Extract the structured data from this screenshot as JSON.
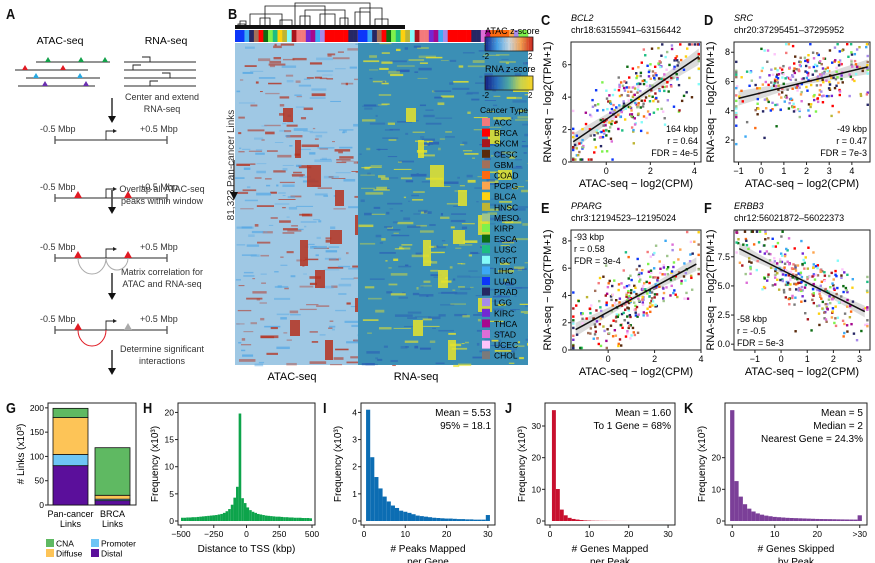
{
  "panels": {
    "A": {
      "label": "A",
      "atac_title": "ATAC-seq",
      "rna_title": "RNA-seq",
      "steps": [
        "Center and extend\nRNA-seq",
        "Overlap all ATAC-seq\npeaks within window",
        "Matrix correlation for\nATAC and RNA-seq",
        "Determine significant\ninteractions"
      ],
      "left_window": "-0.5 Mbp",
      "right_window": "+0.5 Mbp",
      "peak_colors": [
        "#13a14a",
        "#e01b24",
        "#29a8e0",
        "#6a2fb0"
      ]
    },
    "B": {
      "label": "B",
      "ylabel": "81,323 Pan-cancer Links",
      "atac_xlabel": "ATAC-seq",
      "rna_xlabel": "RNA-seq",
      "atac_scale_title": "ATAC z-score",
      "rna_scale_title": "RNA z-score",
      "scale_min": "-2",
      "scale_max": "2",
      "legend_title": "Cancer Type",
      "cancer_types": [
        {
          "name": "ACC",
          "color": "#f4797b"
        },
        {
          "name": "BRCA",
          "color": "#ff0000"
        },
        {
          "name": "SKCM",
          "color": "#a8151d"
        },
        {
          "name": "CESC",
          "color": "#5a2a0c"
        },
        {
          "name": "GBM",
          "color": "#a2705a"
        },
        {
          "name": "COAD",
          "color": "#fd6a11"
        },
        {
          "name": "PCPG",
          "color": "#fda54e"
        },
        {
          "name": "BLCA",
          "color": "#fdd10f"
        },
        {
          "name": "HNSC",
          "color": "#bdb534"
        },
        {
          "name": "MESO",
          "color": "#9fc48c"
        },
        {
          "name": "KIRP",
          "color": "#7ef14c"
        },
        {
          "name": "ESCA",
          "color": "#0d6c13"
        },
        {
          "name": "LUSC",
          "color": "#1dbd82"
        },
        {
          "name": "TGCT",
          "color": "#84fbf9"
        },
        {
          "name": "LIHC",
          "color": "#3ca9f4"
        },
        {
          "name": "LUAD",
          "color": "#0c36f9"
        },
        {
          "name": "PRAD",
          "color": "#262764"
        },
        {
          "name": "LGG",
          "color": "#a68ae9"
        },
        {
          "name": "KIRC",
          "color": "#7328d3"
        },
        {
          "name": "THCA",
          "color": "#a5088e"
        },
        {
          "name": "STAD",
          "color": "#dd6ed7"
        },
        {
          "name": "UCEC",
          "color": "#fdc4fa"
        },
        {
          "name": "CHOL",
          "color": "#7a7a7a"
        }
      ]
    }
  },
  "chart_data": [
    {
      "id": "C",
      "type": "scatter",
      "label": "C",
      "gene": "BCL2",
      "region": "chr18:63155941–63156442",
      "xlabel": "ATAC-seq − log2(CPM)",
      "ylabel": "RNA-seq − log2(TPM+1)",
      "xlim": [
        -1.6,
        4.3
      ],
      "ylim": [
        0,
        7.4
      ],
      "xticks": [
        "0",
        "2",
        "4"
      ],
      "xtick_values": [
        0,
        2,
        4
      ],
      "yticks": [
        "0",
        "2",
        "4",
        "6"
      ],
      "ytick_values": [
        0,
        2,
        4,
        6
      ],
      "fit": {
        "x": [
          -1.5,
          4.2
        ],
        "y": [
          1.25,
          6.5
        ]
      },
      "annotations": [
        "164 kbp",
        "r = 0.64",
        "FDR = 4e-5"
      ],
      "annotation_position": "bottom-right",
      "point_count": 320,
      "seed": 11
    },
    {
      "id": "D",
      "type": "scatter",
      "label": "D",
      "gene": "SRC",
      "region": "chr20:37295451–37295952",
      "xlabel": "ATAC-seq − log2(CPM)",
      "ylabel": "RNA-seq − log2(TPM+1)",
      "xlim": [
        -1.2,
        4.8
      ],
      "ylim": [
        0.5,
        8.7
      ],
      "xticks": [
        "−1",
        "0",
        "1",
        "2",
        "3",
        "4"
      ],
      "xtick_values": [
        -1,
        0,
        1,
        2,
        3,
        4
      ],
      "yticks": [
        "2",
        "4",
        "6",
        "8"
      ],
      "ytick_values": [
        2,
        4,
        6,
        8
      ],
      "fit": {
        "x": [
          -1.0,
          4.7
        ],
        "y": [
          4.85,
          7.0
        ]
      },
      "annotations": [
        "-49 kbp",
        "r = 0.47",
        "FDR = 7e-3"
      ],
      "annotation_position": "bottom-right",
      "point_count": 320,
      "seed": 23
    },
    {
      "id": "E",
      "type": "scatter",
      "label": "E",
      "gene": "PPARG",
      "region": "chr3:12194523–12195024",
      "xlabel": "ATAC-seq − log2(CPM)",
      "ylabel": "RNA-seq − log2(TPM+1)",
      "xlim": [
        -1.6,
        4.0
      ],
      "ylim": [
        0,
        8.8
      ],
      "xticks": [
        "0",
        "2",
        "4"
      ],
      "xtick_values": [
        0,
        2,
        4
      ],
      "yticks": [
        "0",
        "2",
        "4",
        "6",
        "8"
      ],
      "ytick_values": [
        0,
        2,
        4,
        6,
        8
      ],
      "fit": {
        "x": [
          -1.4,
          3.8
        ],
        "y": [
          1.5,
          6.3
        ]
      },
      "annotations": [
        "-93 kbp",
        "r = 0.58",
        "FDR = 3e-4"
      ],
      "annotation_position": "top-left",
      "point_count": 320,
      "seed": 37
    },
    {
      "id": "F",
      "type": "scatter",
      "label": "F",
      "gene": "ERBB3",
      "region": "chr12:56021872–56022373",
      "xlabel": "ATAC-seq − log2(CPM)",
      "ylabel": "RNA-seq − log2(TPM+1)",
      "xlim": [
        -1.8,
        3.4
      ],
      "ylim": [
        -0.5,
        9.8
      ],
      "xticks": [
        "−1",
        "0",
        "1",
        "2",
        "3"
      ],
      "xtick_values": [
        -1,
        0,
        1,
        2,
        3
      ],
      "yticks": [
        "0.0",
        "2.5",
        "5.0",
        "7.5"
      ],
      "ytick_values": [
        0,
        2.5,
        5,
        7.5
      ],
      "fit": {
        "x": [
          -1.6,
          3.2
        ],
        "y": [
          8.2,
          2.8
        ]
      },
      "annotations": [
        "-58 kbp",
        "r = -0.5",
        "FDR = 5e-3"
      ],
      "annotation_position": "bottom-left",
      "point_count": 320,
      "seed": 51
    },
    {
      "id": "G",
      "type": "bar",
      "label": "G",
      "stacked": true,
      "categories": [
        "Pan-cancer\nLinks",
        "BRCA\nLinks"
      ],
      "ylabel": "# Links (x10³)",
      "ylim": [
        0,
        210
      ],
      "yticks": [
        "0",
        "50",
        "100",
        "150",
        "200"
      ],
      "ytick_values": [
        0,
        50,
        100,
        150,
        200
      ],
      "series": [
        {
          "name": "Distal",
          "color": "#5b0f9b",
          "values": [
            81,
            9
          ]
        },
        {
          "name": "Promoter",
          "color": "#6ec5f5",
          "values": [
            23,
            3
          ]
        },
        {
          "name": "Diffuse",
          "color": "#fdc457",
          "values": [
            76,
            8
          ]
        },
        {
          "name": "CNA",
          "color": "#5fb962",
          "values": [
            19,
            98
          ]
        }
      ],
      "legend": [
        {
          "name": "CNA",
          "color": "#5fb962"
        },
        {
          "name": "Promoter",
          "color": "#6ec5f5"
        },
        {
          "name": "Diffuse",
          "color": "#fdc457"
        },
        {
          "name": "Distal",
          "color": "#5b0f9b"
        }
      ],
      "legend_position": "bottom"
    },
    {
      "id": "H",
      "type": "bar",
      "label": "H",
      "histogram": true,
      "color": "#0da44b",
      "xlabel": "Distance to TSS (kbp)",
      "ylabel": "Frequency (x10³)",
      "xlim": [
        -500,
        500
      ],
      "ylim": [
        0,
        21
      ],
      "xticks": [
        "−500",
        "−250",
        "0",
        "250",
        "500"
      ],
      "xtick_values": [
        -500,
        -250,
        0,
        250,
        500
      ],
      "yticks": [
        "0",
        "5",
        "10",
        "15",
        "20"
      ],
      "ytick_values": [
        0,
        5,
        10,
        15,
        20
      ],
      "bin_width": 20,
      "values": [
        0.6,
        0.6,
        0.65,
        0.65,
        0.7,
        0.7,
        0.75,
        0.8,
        0.85,
        0.9,
        0.95,
        1.0,
        1.05,
        1.1,
        1.2,
        1.3,
        1.5,
        1.8,
        2.2,
        3.0,
        4.3,
        6.3,
        19.8,
        4.2,
        3.3,
        2.5,
        2.0,
        1.7,
        1.5,
        1.3,
        1.2,
        1.1,
        1.0,
        0.95,
        0.9,
        0.85,
        0.8,
        0.8,
        0.75,
        0.7,
        0.7,
        0.65,
        0.65,
        0.6,
        0.6,
        0.6,
        0.55,
        0.55,
        0.55,
        0.5
      ]
    },
    {
      "id": "I",
      "type": "bar",
      "label": "I",
      "histogram": true,
      "color": "#0c6db3",
      "xlabel": "# Peaks Mapped\nper Gene",
      "ylabel": "Frequency (x10³)",
      "xlim": [
        0,
        31
      ],
      "ylim": [
        0,
        4.2
      ],
      "xticks": [
        "0",
        "10",
        "20",
        "30"
      ],
      "xtick_values": [
        0,
        10,
        20,
        30
      ],
      "yticks": [
        "0",
        "1",
        "2",
        "3",
        "4"
      ],
      "ytick_values": [
        0,
        1,
        2,
        3,
        4
      ],
      "bins_start": 0.5,
      "bin_width": 1,
      "values": [
        4.1,
        2.35,
        1.62,
        1.2,
        0.9,
        0.72,
        0.57,
        0.48,
        0.38,
        0.34,
        0.3,
        0.25,
        0.2,
        0.18,
        0.16,
        0.14,
        0.12,
        0.11,
        0.1,
        0.09,
        0.09,
        0.08,
        0.07,
        0.07,
        0.06,
        0.06,
        0.05,
        0.05,
        0.05,
        0.22
      ],
      "annotations": [
        "Mean = 5.53",
        "95% = 18.1"
      ]
    },
    {
      "id": "J",
      "type": "bar",
      "label": "J",
      "histogram": true,
      "color": "#c8102e",
      "xlabel": "# Genes Mapped\nper Peak",
      "ylabel": "Frequency (x10³)",
      "xlim": [
        -0.5,
        31
      ],
      "ylim": [
        0,
        36
      ],
      "xticks": [
        "0",
        "10",
        "20",
        "30"
      ],
      "xtick_values": [
        0,
        10,
        20,
        30
      ],
      "yticks": [
        "0",
        "10",
        "20",
        "30"
      ],
      "ytick_values": [
        0,
        10,
        20,
        30
      ],
      "bins_start": 0.5,
      "bin_width": 1,
      "values": [
        35,
        10.1,
        3.6,
        1.8,
        1.0,
        0.65,
        0.45,
        0.3,
        0.2,
        0.15,
        0.1,
        0.08,
        0.06,
        0.05,
        0.04,
        0.03,
        0.02,
        0.02,
        0.02,
        0.01,
        0.01,
        0.01,
        0.01,
        0.01,
        0.01,
        0.01,
        0.01,
        0.01,
        0.01,
        0.01
      ],
      "annotations": [
        "Mean = 1.60",
        "To 1 Gene = 68%"
      ]
    },
    {
      "id": "K",
      "type": "bar",
      "label": "K",
      "histogram": true,
      "color": "#7b3f98",
      "xlabel": "# Genes Skipped\nby Peak",
      "ylabel": "Frequency (x10³)",
      "xlim": [
        -1,
        31
      ],
      "ylim": [
        0,
        36
      ],
      "xticks": [
        "0",
        "10",
        "20",
        ">30"
      ],
      "xtick_values": [
        0,
        10,
        20,
        30
      ],
      "yticks": [
        "0",
        "10",
        "20"
      ],
      "ytick_values": [
        0,
        10,
        20
      ],
      "bins_start": -0.5,
      "bin_width": 1,
      "values": [
        35,
        12.6,
        7.7,
        5.3,
        3.9,
        3.0,
        2.4,
        2.0,
        1.7,
        1.5,
        1.3,
        1.2,
        1.1,
        1.0,
        0.95,
        0.9,
        0.85,
        0.8,
        0.75,
        0.7,
        0.65,
        0.62,
        0.6,
        0.58,
        0.55,
        0.52,
        0.5,
        0.48,
        0.46,
        0.45,
        1.8
      ],
      "annotations": [
        "Mean = 5",
        "Median = 2",
        "Nearest Gene = 24.3%"
      ]
    }
  ]
}
